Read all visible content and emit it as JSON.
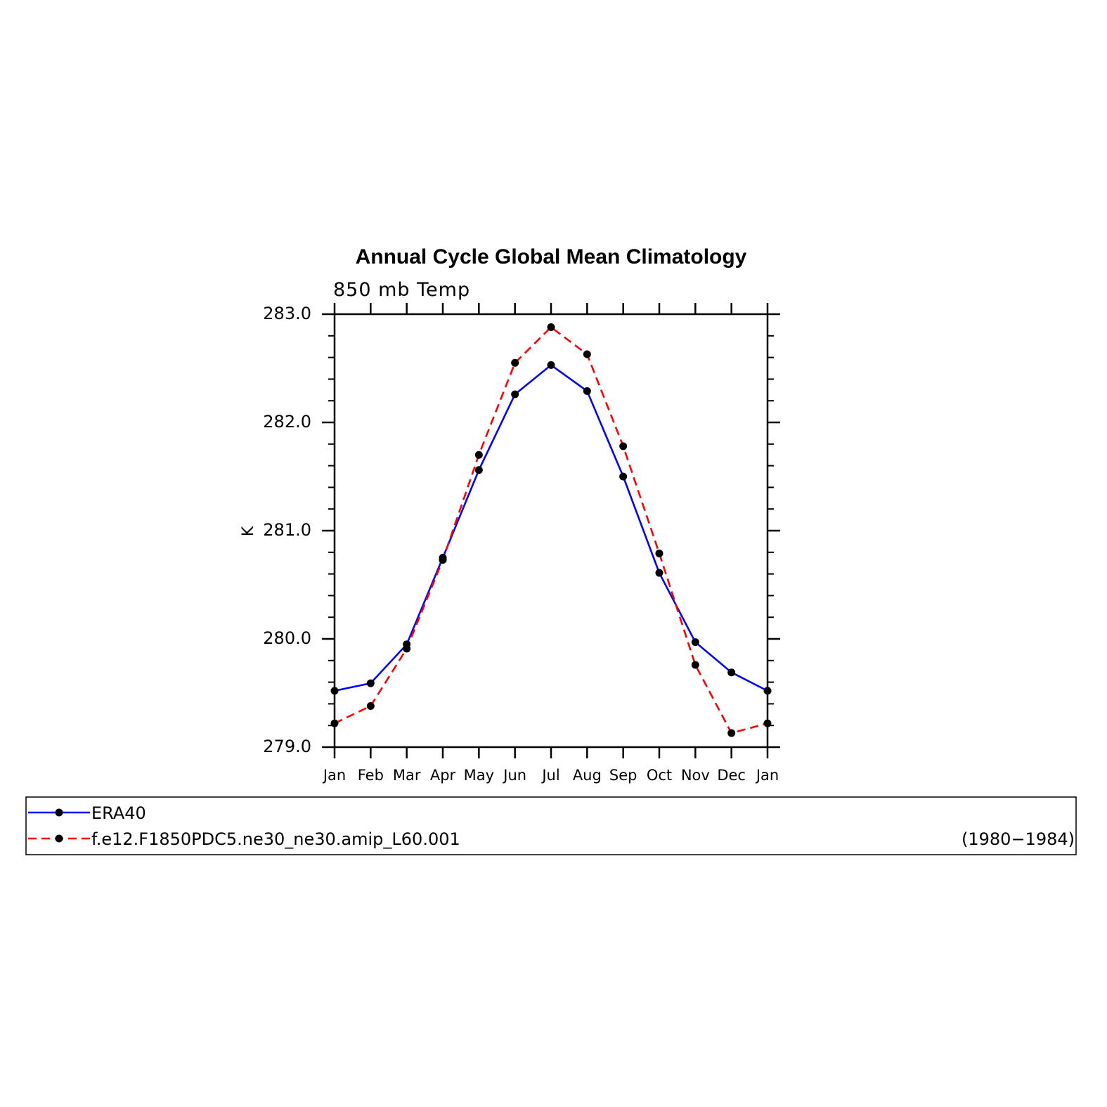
{
  "chart_data": {
    "type": "line",
    "title": "Annual Cycle Global Mean Climatology",
    "subtitle": "850 mb Temp",
    "ylabel": "K",
    "xlabel": "",
    "categories": [
      "Jan",
      "Feb",
      "Mar",
      "Apr",
      "May",
      "Jun",
      "Jul",
      "Aug",
      "Sep",
      "Oct",
      "Nov",
      "Dec",
      "Jan"
    ],
    "ylim": [
      279.0,
      283.0
    ],
    "yticks": [
      "279.0",
      "280.0",
      "281.0",
      "282.0",
      "283.0"
    ],
    "ytick_values": [
      279.0,
      280.0,
      281.0,
      282.0,
      283.0
    ],
    "minor_tick_step": 0.2,
    "grid": false,
    "legend_placement": "bottom",
    "series": [
      {
        "name": "ERA40",
        "color": "#0000ff",
        "style": "solid",
        "marker": "dot",
        "values": [
          279.52,
          279.59,
          279.95,
          280.75,
          281.56,
          282.26,
          282.53,
          282.29,
          281.5,
          280.61,
          279.97,
          279.69,
          279.52
        ]
      },
      {
        "name": "f.e12.F1850PDC5.ne30_ne30.amip_L60.001",
        "color": "#ff0000",
        "style": "dashed",
        "marker": "dot",
        "values": [
          279.22,
          279.38,
          279.91,
          280.73,
          281.7,
          282.55,
          282.88,
          282.63,
          281.78,
          280.79,
          279.76,
          279.13,
          279.22
        ]
      }
    ],
    "legend_note": "(1980−1984)"
  }
}
